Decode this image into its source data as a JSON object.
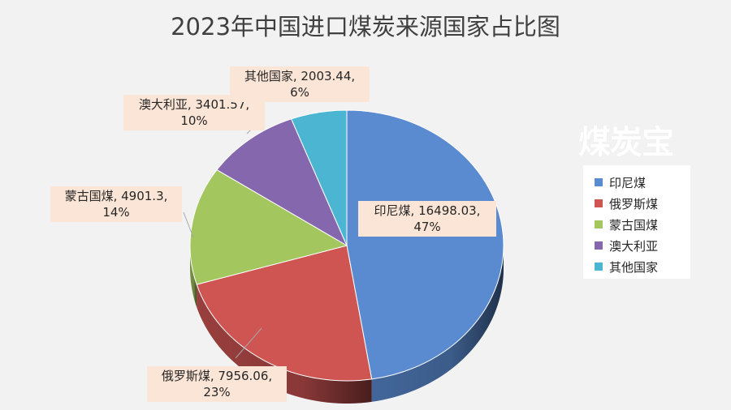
{
  "chart_data": {
    "type": "pie",
    "title": "2023年中国进口煤炭来源国家占比图",
    "slices": [
      {
        "label": "印尼煤",
        "value": 16498.03,
        "percent_label": "47%",
        "color": "#5a8bd0"
      },
      {
        "label": "俄罗斯煤",
        "value": 7956.06,
        "percent_label": "23%",
        "color": "#cf5553"
      },
      {
        "label": "蒙古国煤",
        "value": 4901.3,
        "percent_label": "14%",
        "color": "#a4c65f"
      },
      {
        "label": "澳大利亚",
        "value": 3401.57,
        "percent_label": "10%",
        "color": "#8567ad"
      },
      {
        "label": "其他国家",
        "value": 2003.44,
        "percent_label": "6%",
        "color": "#4cb5d2"
      }
    ],
    "data_labels": [
      {
        "line1": "印尼煤, 16498.03,",
        "line2": "47%"
      },
      {
        "line1": "俄罗斯煤, 7956.06,",
        "line2": "23%"
      },
      {
        "line1": "蒙古国煤, 4901.3,",
        "line2": "14%"
      },
      {
        "line1": "澳大利亚, 3401.57,",
        "line2": "10%"
      },
      {
        "line1": "其他国家, 2003.44,",
        "line2": "6%"
      }
    ],
    "legend": {
      "placement": "right",
      "entries": [
        "印尼煤",
        "俄罗斯煤",
        "蒙古国煤",
        "澳大利亚",
        "其他国家"
      ]
    },
    "style": "3d"
  },
  "watermark": "煤炭宝"
}
